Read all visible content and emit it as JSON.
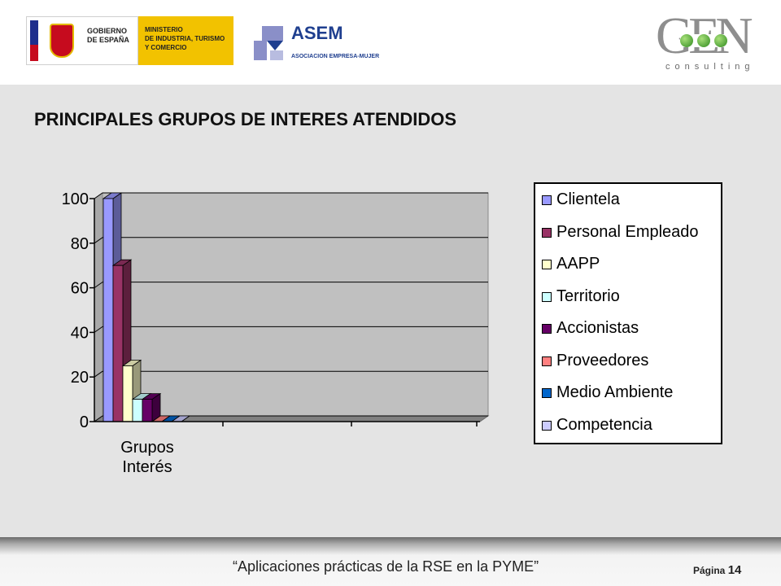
{
  "header": {
    "gov_logo": {
      "left_text": "GOBIERNO\nDE ESPAÑA",
      "right_text": "MINISTERIO\nDE INDUSTRIA, TURISMO\nY COMERCIO"
    },
    "asem_logo": {
      "name": "ASEM",
      "subtitle": "ASOCIACION EMPRESA-MUJER",
      "color": "#1f3f8f"
    },
    "gen_logo": {
      "word": "GEN",
      "subtitle": "consulting",
      "dot_color": "#3f9a2a"
    }
  },
  "slide": {
    "title": "PRINCIPALES GRUPOS DE INTERES ATENDIDOS"
  },
  "chart_data": {
    "type": "bar",
    "title": "",
    "xlabel": "",
    "ylabel": "",
    "categories": [
      "Grupos Interés"
    ],
    "category_lines": [
      "Grupos",
      "Interés"
    ],
    "ylim": [
      0,
      100
    ],
    "yticks": [
      0,
      20,
      40,
      60,
      80,
      100
    ],
    "grid": true,
    "legend_position": "right",
    "series": [
      {
        "name": "Clientela",
        "values": [
          100
        ],
        "color": "#9999ff"
      },
      {
        "name": "Personal Empleado",
        "values": [
          70
        ],
        "color": "#993366"
      },
      {
        "name": "AAPP",
        "values": [
          25
        ],
        "color": "#ffffcc"
      },
      {
        "name": "Territorio",
        "values": [
          10
        ],
        "color": "#ccffff"
      },
      {
        "name": "Accionistas",
        "values": [
          10
        ],
        "color": "#660066"
      },
      {
        "name": "Proveedores",
        "values": [
          0
        ],
        "color": "#ff8080"
      },
      {
        "name": "Medio Ambiente",
        "values": [
          0
        ],
        "color": "#0066cc"
      },
      {
        "name": "Competencia",
        "values": [
          0
        ],
        "color": "#ccccff"
      }
    ]
  },
  "footer": {
    "caption": "“Aplicaciones prácticas de la RSE en la PYME”",
    "page_label": "Página",
    "page_number": "14"
  }
}
